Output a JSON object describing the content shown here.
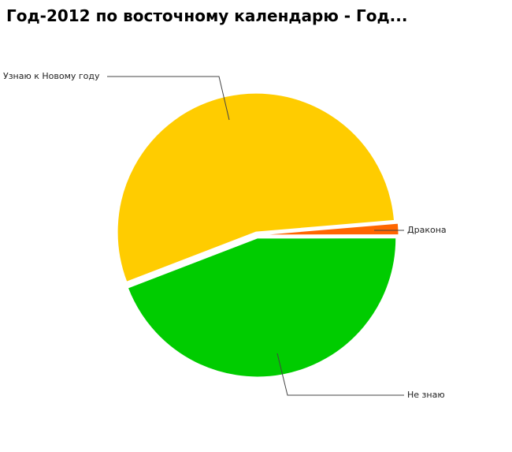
{
  "chart_data": {
    "type": "pie",
    "title": "Год-2012 по восточному календарю - Год...",
    "categories": [
      "Узнаю к Новому году",
      "Дракона",
      "Не знаю"
    ],
    "values": [
      54.5,
      1.3,
      44.2
    ],
    "colors": [
      "#ffcc00",
      "#ff6600",
      "#00cc00"
    ]
  }
}
